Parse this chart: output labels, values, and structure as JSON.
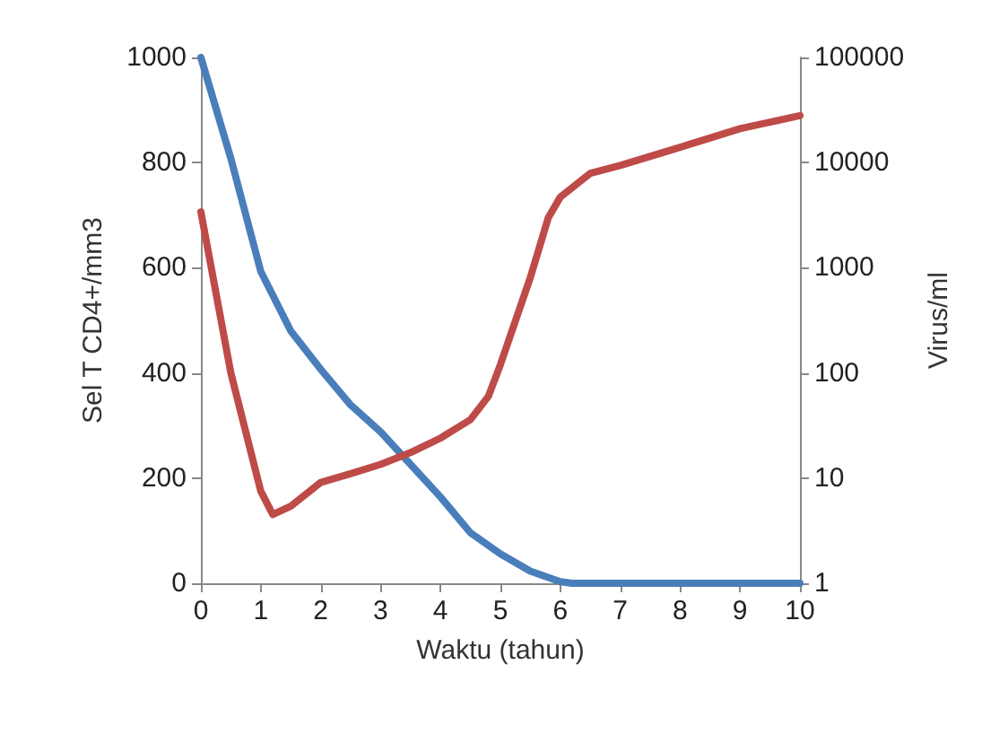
{
  "chart_data": {
    "type": "line",
    "xlabel": "Waktu (tahun)",
    "ylabel": "Sel T CD4+/mm3",
    "y2label": "Virus/ml",
    "x": [
      0,
      0.5,
      1,
      1.5,
      2,
      2.5,
      3,
      3.5,
      4,
      4.5,
      5,
      5.5,
      6,
      6.2,
      7,
      8,
      9,
      10
    ],
    "series": [
      {
        "color": "#4a7ebb",
        "values": [
          1000,
          808,
          593,
          480,
          407,
          339,
          288,
          226,
          164,
          96,
          56,
          23,
          3,
          0,
          0,
          0,
          0,
          0
        ]
      },
      {
        "color": "#be4b48",
        "axis": "y2",
        "x": [
          0,
          0.5,
          1,
          1.2,
          1.5,
          2,
          2.5,
          3,
          3.5,
          4,
          4.5,
          4.8,
          5,
          5.5,
          5.8,
          6,
          6.5,
          7,
          8,
          9,
          10
        ],
        "values": [
          3400,
          100,
          7.5,
          4.5,
          5.4,
          9.1,
          11,
          13.5,
          17.5,
          24,
          36,
          60,
          120,
          810,
          3000,
          4700,
          7900,
          9400,
          14000,
          21000,
          28000
        ]
      }
    ],
    "xlim": [
      0,
      10
    ],
    "xticks": [
      0,
      1,
      2,
      3,
      4,
      5,
      6,
      7,
      8,
      9,
      10
    ],
    "ylim": [
      0,
      1000
    ],
    "yticks": [
      0,
      200,
      400,
      600,
      800,
      1000
    ],
    "y2lim": [
      1,
      100000
    ],
    "y2ticks": [
      1,
      10,
      100,
      1000,
      10000,
      100000
    ],
    "log": "y2",
    "grid": false
  }
}
